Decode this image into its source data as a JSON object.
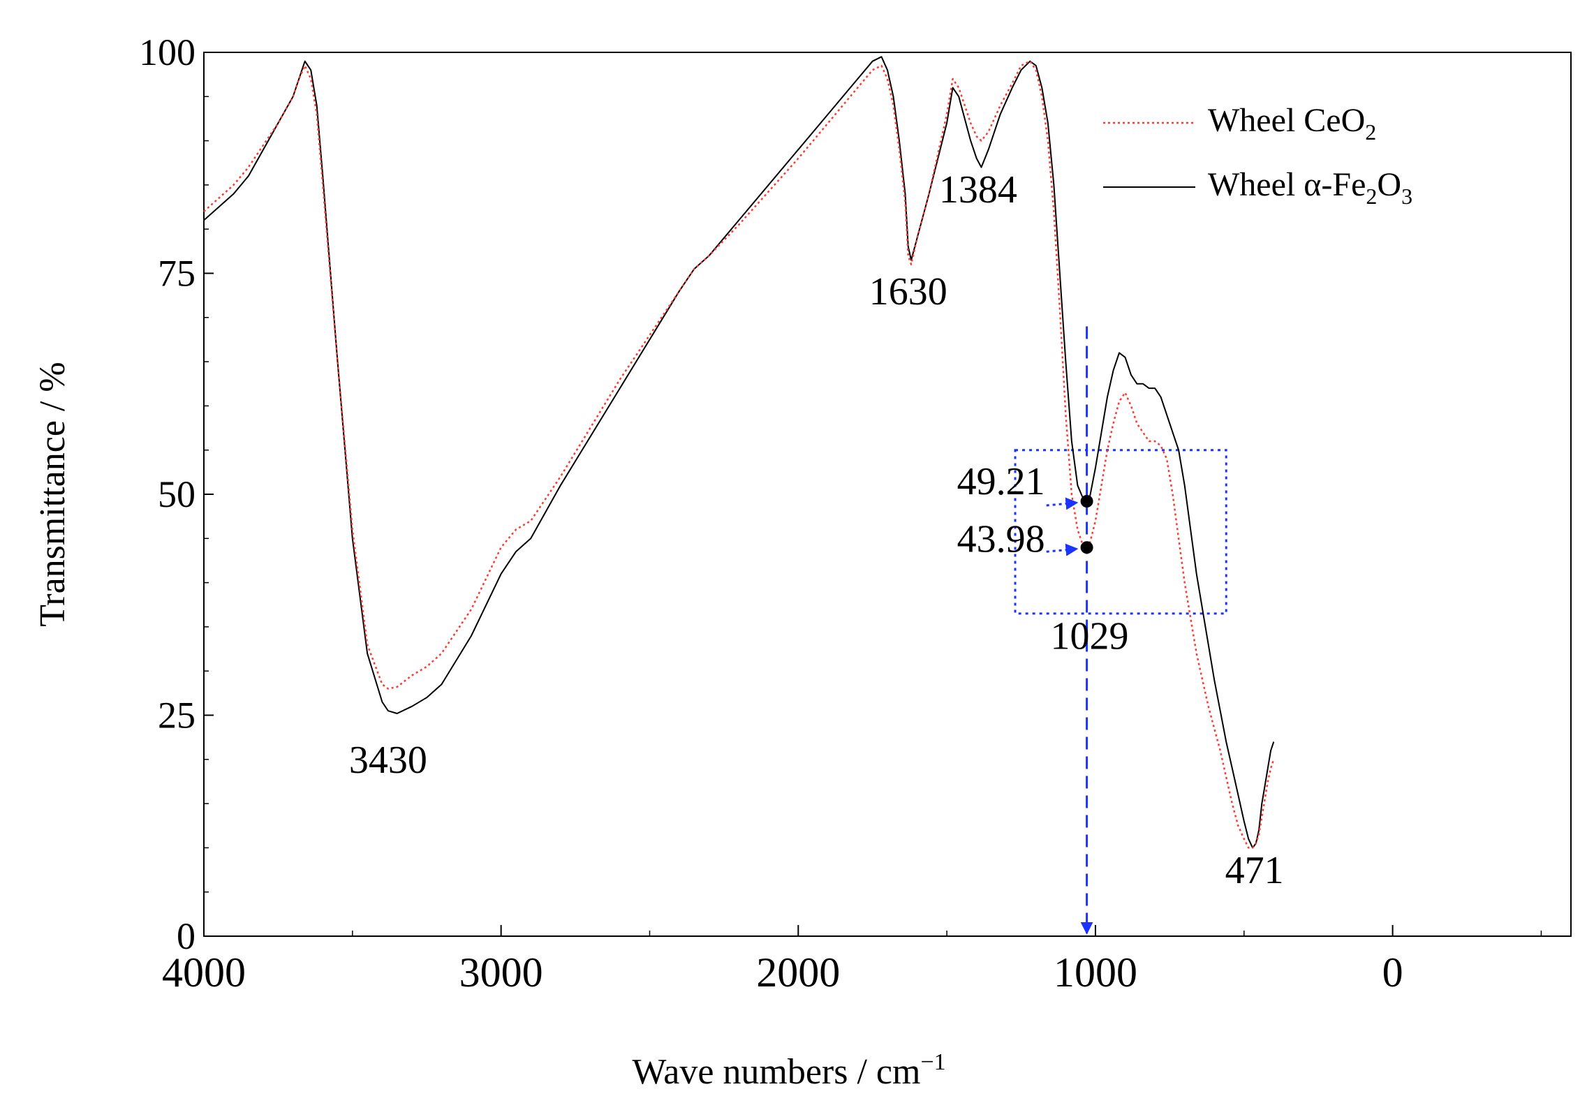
{
  "chart_data": {
    "type": "line",
    "title": "",
    "xlabel": {
      "prefix": "Wave  numbers",
      "unit_base": "  /  cm",
      "unit_sup": "−1"
    },
    "ylabel": "Transmittance  /  %",
    "xlim": [
      4000,
      -600
    ],
    "ylim": [
      0,
      100
    ],
    "x_ticks": [
      4000,
      3000,
      2000,
      1000,
      0
    ],
    "x_tick_labels": [
      "4000",
      "3000",
      "2000",
      "1000",
      "0"
    ],
    "y_ticks": [
      0,
      25,
      50,
      75,
      100
    ],
    "y_tick_labels": [
      "0",
      "25",
      "50",
      "75",
      "100"
    ],
    "grid": false,
    "legend": {
      "position": "top-right",
      "entries": [
        {
          "series": "ceo2",
          "base": "Wheel CeO",
          "sub1": "2",
          "mid": "",
          "sub2": ""
        },
        {
          "series": "fe2o3",
          "base": "Wheel α-Fe",
          "sub1": "2",
          "mid": "O",
          "sub2": "3"
        }
      ]
    },
    "series": [
      {
        "key": "fe2o3",
        "name": "Wheel α-Fe2O3",
        "color": "#000000",
        "style": "solid",
        "x": [
          4000,
          3900,
          3850,
          3800,
          3750,
          3700,
          3680,
          3660,
          3640,
          3620,
          3600,
          3550,
          3500,
          3450,
          3400,
          3380,
          3350,
          3300,
          3250,
          3200,
          3100,
          3000,
          2950,
          2900,
          2800,
          2600,
          2400,
          2350,
          2300,
          2200,
          2000,
          1900,
          1800,
          1750,
          1720,
          1700,
          1680,
          1660,
          1640,
          1630,
          1620,
          1600,
          1560,
          1500,
          1480,
          1460,
          1420,
          1400,
          1384,
          1360,
          1320,
          1280,
          1250,
          1220,
          1200,
          1180,
          1160,
          1140,
          1120,
          1100,
          1080,
          1060,
          1045,
          1035,
          1029,
          1020,
          1000,
          980,
          960,
          940,
          920,
          900,
          880,
          860,
          840,
          820,
          800,
          780,
          760,
          740,
          720,
          700,
          680,
          660,
          640,
          620,
          600,
          580,
          560,
          540,
          520,
          500,
          485,
          471,
          460,
          450,
          440,
          430,
          420,
          410,
          400
        ],
        "y": [
          81,
          84,
          86,
          89,
          92,
          95,
          97,
          99,
          98,
          94,
          86,
          65,
          45,
          32,
          26.5,
          25.5,
          25.2,
          26,
          27,
          28.5,
          34,
          41,
          43.5,
          45,
          51,
          62,
          73,
          75.5,
          77,
          81,
          89,
          93,
          97,
          99,
          99.5,
          98,
          95,
          90,
          84,
          78,
          76.5,
          79,
          84,
          92,
          96,
          95,
          90,
          88,
          87,
          89,
          93,
          96,
          98,
          99,
          98.5,
          96,
          92,
          85,
          75,
          65,
          56,
          51,
          49.8,
          49.3,
          49.21,
          49.5,
          53,
          57,
          61,
          64,
          66,
          65.5,
          63.5,
          62.5,
          62.5,
          62,
          62,
          61,
          59,
          57,
          55,
          51,
          46,
          41,
          37,
          33,
          29,
          25.5,
          22,
          19,
          16,
          13,
          11,
          10,
          10.5,
          12,
          15,
          17,
          19,
          21,
          22
        ]
      },
      {
        "key": "ceo2",
        "name": "Wheel CeO2",
        "color": "#ff3b30",
        "style": "dotted",
        "x": [
          4000,
          3900,
          3850,
          3800,
          3750,
          3700,
          3680,
          3660,
          3640,
          3620,
          3600,
          3550,
          3500,
          3450,
          3400,
          3380,
          3350,
          3300,
          3250,
          3200,
          3100,
          3000,
          2950,
          2900,
          2800,
          2600,
          2400,
          2350,
          2300,
          2200,
          2000,
          1900,
          1800,
          1750,
          1720,
          1700,
          1680,
          1660,
          1640,
          1630,
          1620,
          1600,
          1560,
          1500,
          1480,
          1460,
          1420,
          1400,
          1384,
          1360,
          1320,
          1280,
          1250,
          1220,
          1200,
          1180,
          1160,
          1140,
          1120,
          1100,
          1080,
          1060,
          1045,
          1035,
          1029,
          1020,
          1000,
          980,
          960,
          940,
          920,
          900,
          880,
          860,
          840,
          820,
          800,
          780,
          760,
          740,
          720,
          700,
          680,
          660,
          640,
          620,
          600,
          580,
          560,
          540,
          520,
          500,
          485,
          471,
          460,
          450,
          440,
          430,
          420,
          410,
          400
        ],
        "y": [
          82,
          85,
          87,
          89.5,
          92,
          95,
          97,
          98.5,
          97,
          93,
          85,
          65,
          46,
          33,
          28.5,
          28,
          28.2,
          29.5,
          30.5,
          32,
          37,
          44,
          46,
          47,
          52,
          63,
          73,
          75.5,
          77,
          80.5,
          88,
          92,
          96,
          98,
          98.5,
          97,
          94,
          89,
          83,
          77,
          76,
          79,
          84,
          93,
          97,
          96,
          92,
          90.5,
          90,
          91,
          94,
          96.5,
          98.5,
          99,
          98,
          95,
          90,
          82,
          71,
          59,
          50,
          46,
          44.5,
          44,
          43.98,
          44.3,
          47,
          51,
          55,
          58,
          60.5,
          61.5,
          60,
          58,
          57,
          56,
          56,
          55.5,
          54,
          50,
          45,
          40,
          36,
          32,
          29,
          26,
          23.5,
          21,
          18,
          15,
          12.5,
          11,
          10,
          10,
          10.5,
          11.5,
          13.5,
          15.5,
          17.5,
          19,
          20
        ]
      }
    ],
    "annotations": [
      {
        "text": "3430",
        "x": 3380,
        "y": 18.5
      },
      {
        "text": "1630",
        "x": 1630,
        "y": 71.5
      },
      {
        "text": "1384",
        "x": 1395,
        "y": 83
      },
      {
        "text": "1029",
        "x": 1020,
        "y": 32.5
      },
      {
        "text": "471",
        "x": 465,
        "y": 6
      },
      {
        "text": "49.21",
        "x": 1170,
        "y": 50
      },
      {
        "text": "43.98",
        "x": 1170,
        "y": 43.5
      }
    ],
    "markers": [
      {
        "label": "49.21",
        "x": 1029,
        "y": 49.21
      },
      {
        "label": "43.98",
        "x": 1029,
        "y": 43.98
      }
    ],
    "guide": {
      "x": 1029,
      "y_top": 69,
      "y_bottom": 0,
      "color": "#1a33ff"
    },
    "highlight_box": {
      "x0": 1270,
      "x1": 560,
      "y0": 36.5,
      "y1": 55,
      "color": "#1a33ff"
    }
  }
}
